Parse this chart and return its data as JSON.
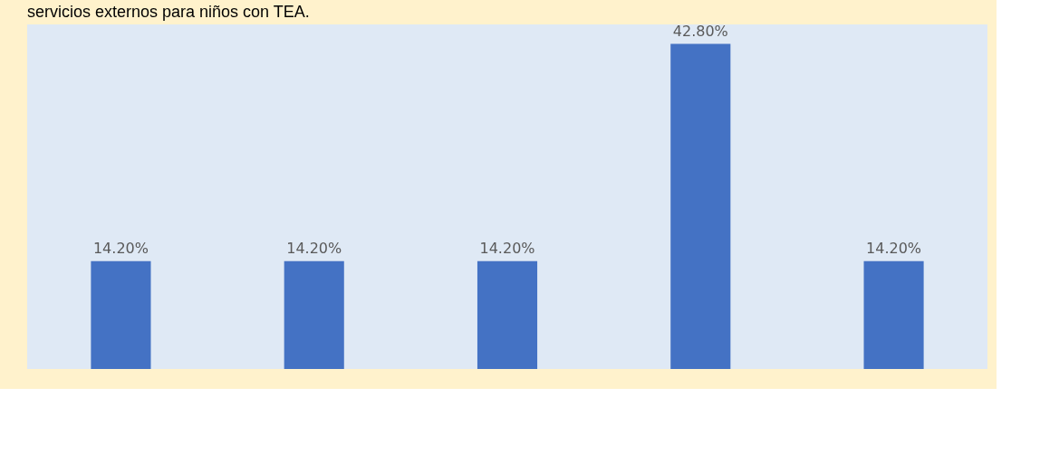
{
  "chart_data": {
    "type": "bar",
    "title": "servicios externos para niños con TEA.",
    "categories": [
      null,
      null,
      null,
      null,
      null
    ],
    "values": [
      14.2,
      14.2,
      14.2,
      42.8,
      14.2
    ],
    "value_labels": [
      "14.20%",
      "14.20%",
      "14.20%",
      "42.80%",
      "14.20%"
    ],
    "color": "#4472c4",
    "grid": false
  }
}
